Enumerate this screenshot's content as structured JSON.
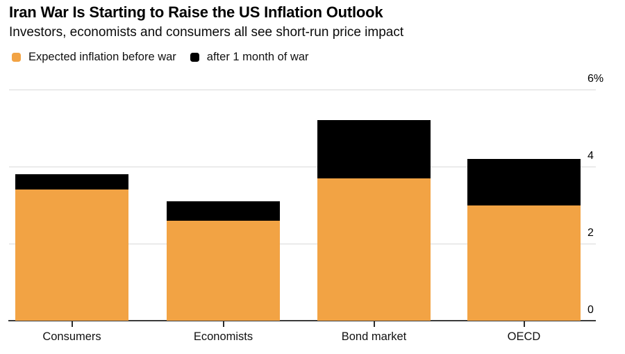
{
  "header": {
    "title": "Iran War Is Starting to Raise the US Inflation Outlook",
    "subtitle": "Investors, economists and consumers all see short-run price impact"
  },
  "legend": {
    "before_label": "Expected inflation before war",
    "after_label": "after 1 month of war"
  },
  "colors": {
    "before": "#F2A344",
    "after": "#000000",
    "gridline": "#d9d9d9",
    "baseline": "#3a3a3a"
  },
  "chart_data": {
    "type": "bar",
    "stacked": true,
    "title": "Iran War Is Starting to Raise the US Inflation Outlook",
    "subtitle": "Investors, economists and consumers all see short-run price impact",
    "categories": [
      "Consumers",
      "Economists",
      "Bond market",
      "OECD"
    ],
    "series": [
      {
        "name": "Expected inflation before war",
        "color": "#F2A344",
        "values": [
          3.4,
          2.6,
          3.7,
          3.0
        ]
      },
      {
        "name": "after 1 month of war",
        "color": "#000000",
        "values": [
          0.4,
          0.5,
          1.5,
          1.2
        ]
      }
    ],
    "totals_after_war": [
      3.8,
      3.1,
      5.2,
      4.2
    ],
    "xlabel": "",
    "ylabel": "",
    "ylim": [
      0,
      6
    ],
    "yticks": [
      0,
      2,
      4,
      6
    ],
    "ytick_labels": [
      "0",
      "2",
      "4",
      "6%"
    ],
    "grid": "horizontal",
    "legend_position": "top-left",
    "y_axis_side": "right"
  }
}
